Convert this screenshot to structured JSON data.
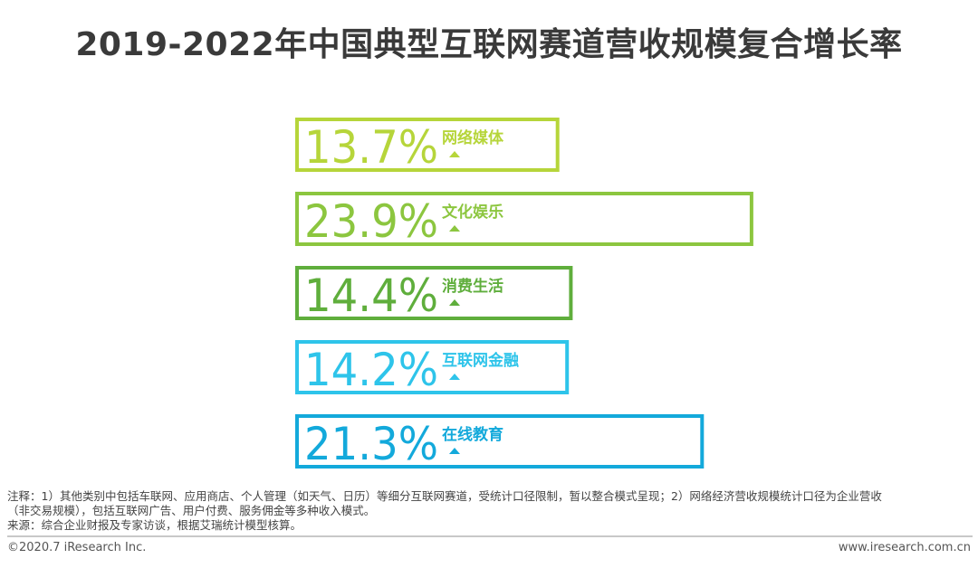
{
  "title": "2019-2022年中国典型互联网赛道营收规模复合增长率",
  "chart_data": {
    "type": "bar",
    "orientation": "horizontal",
    "categories": [
      "网络媒体",
      "文化娱乐",
      "消费生活",
      "互联网金融",
      "在线教育"
    ],
    "values": [
      13.7,
      23.9,
      14.4,
      14.2,
      21.3
    ],
    "value_labels": [
      "13.7%",
      "23.9%",
      "14.4%",
      "14.2%",
      "21.3%"
    ],
    "trend": [
      "up",
      "up",
      "up",
      "up",
      "up"
    ],
    "colors": [
      "#b6d53a",
      "#8cc63f",
      "#5fae3c",
      "#2ec4ea",
      "#13a9db"
    ]
  },
  "notes": {
    "line1": "注释：1）其他类别中包括车联网、应用商店、个人管理（如天气、日历）等细分互联网赛道，受统计口径限制，暂以整合模式呈现；2）网络经济营收规模统计口径为企业营收",
    "line2": "（非交易规模），包括互联网广告、用户付费、服务佣金等多种收入模式。",
    "line3": "来源：综合企业财报及专家访谈，根据艾瑞统计模型核算。"
  },
  "footer": {
    "copyright": "©2020.7 iResearch Inc.",
    "website": "www.iresearch.com.cn"
  }
}
